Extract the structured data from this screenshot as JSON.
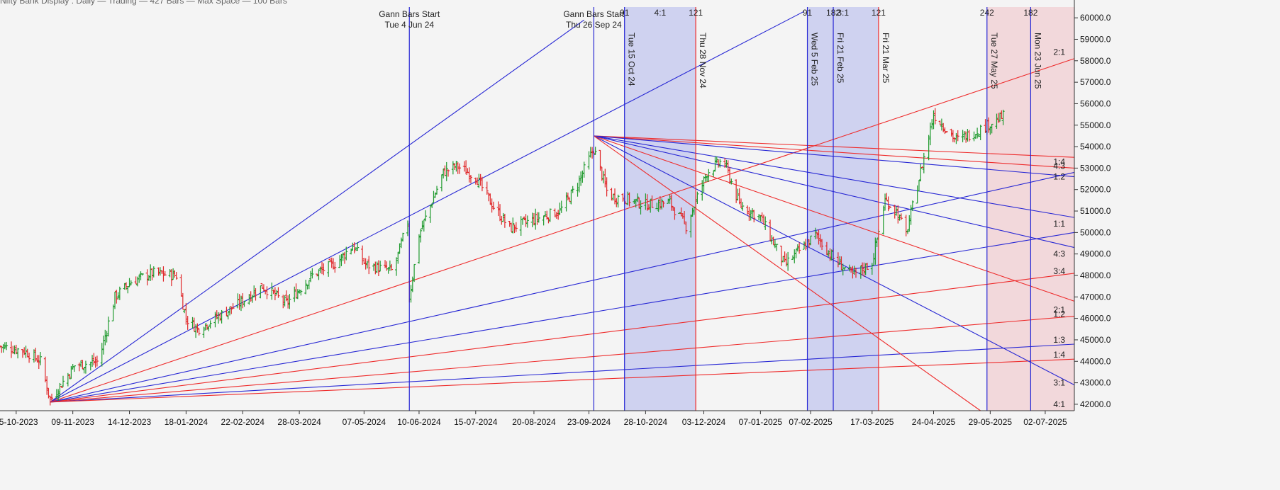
{
  "window": {
    "header_text": "Nifty Bank Display : Daily — Trading — 427 Bars — Max Space — 100 Bars"
  },
  "chart_data": {
    "type": "ohlc",
    "title": "",
    "colors": {
      "up": "#1f9a2e",
      "down": "#e0282a",
      "blue_line": "#2727d4",
      "red_line": "#ee2b2b",
      "band_blue": "#c8cbee",
      "band_red": "#f1d2d6",
      "background": "#f4f4f4"
    },
    "y_axis": {
      "position": "right",
      "min": 41700,
      "max": 60500,
      "ticks": [
        "42000.0",
        "43000.0",
        "44000.0",
        "45000.0",
        "46000.0",
        "47000.0",
        "48000.0",
        "49000.0",
        "50000.0",
        "51000.0",
        "52000.0",
        "53000.0",
        "54000.0",
        "55000.0",
        "56000.0",
        "57000.0",
        "58000.0",
        "59000.0",
        "60000.0"
      ],
      "tick_values": [
        42000,
        43000,
        44000,
        45000,
        46000,
        47000,
        48000,
        49000,
        50000,
        51000,
        52000,
        53000,
        54000,
        55000,
        56000,
        57000,
        58000,
        59000,
        60000
      ]
    },
    "x_axis": {
      "date_range": [
        "2023-09-25",
        "2025-07-20"
      ],
      "ticks": [
        {
          "label": "05-10-2023",
          "date": "2023-10-05"
        },
        {
          "label": "09-11-2023",
          "date": "2023-11-09"
        },
        {
          "label": "14-12-2023",
          "date": "2023-12-14"
        },
        {
          "label": "18-01-2024",
          "date": "2024-01-18"
        },
        {
          "label": "22-02-2024",
          "date": "2024-02-22"
        },
        {
          "label": "28-03-2024",
          "date": "2024-03-28"
        },
        {
          "label": "07-05-2024",
          "date": "2024-05-07"
        },
        {
          "label": "10-06-2024",
          "date": "2024-06-10"
        },
        {
          "label": "15-07-2024",
          "date": "2024-07-15"
        },
        {
          "label": "20-08-2024",
          "date": "2024-08-20"
        },
        {
          "label": "23-09-2024",
          "date": "2024-09-23"
        },
        {
          "label": "28-10-2024",
          "date": "2024-10-28"
        },
        {
          "label": "03-12-2024",
          "date": "2024-12-03"
        },
        {
          "label": "07-01-2025",
          "date": "2025-01-07"
        },
        {
          "label": "07-02-2025",
          "date": "2025-02-07"
        },
        {
          "label": "17-03-2025",
          "date": "2025-03-17"
        },
        {
          "label": "24-04-2025",
          "date": "2025-04-24"
        },
        {
          "label": "29-05-2025",
          "date": "2025-05-29"
        },
        {
          "label": "02-07-2025",
          "date": "2025-07-02"
        }
      ]
    },
    "price_path": [
      {
        "date": "2023-09-25",
        "close": 44700
      },
      {
        "date": "2023-10-10",
        "close": 44500
      },
      {
        "date": "2023-10-20",
        "close": 44000
      },
      {
        "date": "2023-10-26",
        "close": 42200
      },
      {
        "date": "2023-11-10",
        "close": 43800
      },
      {
        "date": "2023-11-25",
        "close": 44000
      },
      {
        "date": "2023-12-05",
        "close": 47000
      },
      {
        "date": "2023-12-15",
        "close": 47700
      },
      {
        "date": "2023-12-28",
        "close": 48100
      },
      {
        "date": "2024-01-12",
        "close": 48000
      },
      {
        "date": "2024-01-18",
        "close": 46000
      },
      {
        "date": "2024-01-25",
        "close": 45500
      },
      {
        "date": "2024-02-05",
        "close": 46000
      },
      {
        "date": "2024-02-20",
        "close": 46700
      },
      {
        "date": "2024-03-05",
        "close": 47500
      },
      {
        "date": "2024-03-20",
        "close": 46700
      },
      {
        "date": "2024-04-05",
        "close": 48000
      },
      {
        "date": "2024-04-20",
        "close": 48600
      },
      {
        "date": "2024-04-30",
        "close": 49400
      },
      {
        "date": "2024-05-08",
        "close": 48500
      },
      {
        "date": "2024-05-25",
        "close": 48200
      },
      {
        "date": "2024-06-03",
        "close": 50500
      },
      {
        "date": "2024-06-04",
        "close": 47000
      },
      {
        "date": "2024-06-10",
        "close": 49900
      },
      {
        "date": "2024-06-25",
        "close": 52800
      },
      {
        "date": "2024-07-03",
        "close": 53100
      },
      {
        "date": "2024-07-15",
        "close": 52600
      },
      {
        "date": "2024-07-25",
        "close": 51300
      },
      {
        "date": "2024-08-05",
        "close": 50200
      },
      {
        "date": "2024-08-20",
        "close": 50600
      },
      {
        "date": "2024-09-05",
        "close": 51000
      },
      {
        "date": "2024-09-15",
        "close": 52100
      },
      {
        "date": "2024-09-26",
        "close": 53900
      },
      {
        "date": "2024-10-05",
        "close": 51700
      },
      {
        "date": "2024-10-15",
        "close": 51600
      },
      {
        "date": "2024-10-28",
        "close": 51300
      },
      {
        "date": "2024-11-12",
        "close": 51400
      },
      {
        "date": "2024-11-22",
        "close": 50300
      },
      {
        "date": "2024-12-05",
        "close": 52800
      },
      {
        "date": "2024-12-15",
        "close": 53400
      },
      {
        "date": "2024-12-25",
        "close": 51300
      },
      {
        "date": "2025-01-07",
        "close": 50700
      },
      {
        "date": "2025-01-22",
        "close": 48500
      },
      {
        "date": "2025-02-02",
        "close": 49300
      },
      {
        "date": "2025-02-10",
        "close": 49900
      },
      {
        "date": "2025-02-21",
        "close": 48800
      },
      {
        "date": "2025-03-05",
        "close": 48000
      },
      {
        "date": "2025-03-17",
        "close": 48600
      },
      {
        "date": "2025-03-25",
        "close": 51500
      },
      {
        "date": "2025-04-01",
        "close": 51000
      },
      {
        "date": "2025-04-07",
        "close": 49900
      },
      {
        "date": "2025-04-15",
        "close": 52500
      },
      {
        "date": "2025-04-24",
        "close": 55500
      },
      {
        "date": "2025-05-08",
        "close": 54300
      },
      {
        "date": "2025-05-20",
        "close": 54700
      },
      {
        "date": "2025-06-06",
        "close": 55400
      }
    ],
    "vertical_markers": [
      {
        "date": "2024-06-04",
        "color": "blue",
        "label_lines": [
          "Gann Bars Start",
          "Tue 4 Jun 24"
        ]
      },
      {
        "date": "2024-09-26",
        "color": "blue",
        "label_lines": [
          "Gann Bars Start",
          "Thu 26 Sep 24"
        ]
      },
      {
        "date": "2024-10-15",
        "color": "blue",
        "date_label": "Tue 15 Oct 24",
        "top_label": "91"
      },
      {
        "date": "2024-11-28",
        "color": "red",
        "date_label": "Thu 28 Nov 24",
        "top_label": "121"
      },
      {
        "date": "2025-02-05",
        "color": "blue",
        "date_label": "Wed 5 Feb 25",
        "top_label": "91"
      },
      {
        "date": "2025-02-21",
        "color": "blue",
        "date_label": "Fri 21 Feb 25",
        "top_label": "182"
      },
      {
        "date": "2025-03-21",
        "color": "red",
        "date_label": "Fri 21 Mar 25",
        "top_label": "121"
      },
      {
        "date": "2025-05-27",
        "color": "blue",
        "date_label": "Tue 27 May 25",
        "top_label": "242"
      },
      {
        "date": "2025-06-23",
        "color": "blue",
        "date_label": "Mon 23 Jun 25",
        "top_label": "182"
      }
    ],
    "shaded_bands": [
      {
        "from": "2024-10-15",
        "to": "2024-11-28",
        "color": "blue",
        "label": "4:1"
      },
      {
        "from": "2025-02-05",
        "to": "2025-03-21",
        "color": "blue",
        "label": "3:1"
      },
      {
        "from": "2025-05-27",
        "to": "2025-07-20",
        "color": "red"
      }
    ],
    "gann_fans": [
      {
        "origin": {
          "date": "2023-10-26",
          "price": 42100
        },
        "lines": [
          {
            "to_date": "2024-09-20",
            "to_price": 59900,
            "color": "blue"
          },
          {
            "to_date": "2025-02-03",
            "to_price": 60300,
            "color": "blue"
          },
          {
            "to_date": "2025-07-20",
            "to_price": 58100,
            "color": "red"
          },
          {
            "to_date": "2025-07-20",
            "to_price": 52800,
            "color": "blue"
          },
          {
            "to_date": "2025-07-20",
            "to_price": 50000,
            "color": "blue"
          },
          {
            "to_date": "2025-07-20",
            "to_price": 48100,
            "color": "red"
          },
          {
            "to_date": "2025-07-20",
            "to_price": 46100,
            "color": "red"
          },
          {
            "to_date": "2025-07-20",
            "to_price": 44800,
            "color": "blue"
          },
          {
            "to_date": "2025-07-20",
            "to_price": 44100,
            "color": "red"
          }
        ]
      },
      {
        "origin": {
          "date": "2024-09-26",
          "price": 54500
        },
        "lines": [
          {
            "to_date": "2025-07-20",
            "to_price": 53500,
            "color": "red"
          },
          {
            "to_date": "2025-07-20",
            "to_price": 53000,
            "color": "red"
          },
          {
            "to_date": "2025-07-20",
            "to_price": 52600,
            "color": "blue"
          },
          {
            "to_date": "2025-07-20",
            "to_price": 50700,
            "color": "blue"
          },
          {
            "to_date": "2025-07-20",
            "to_price": 49300,
            "color": "blue"
          },
          {
            "to_date": "2025-07-20",
            "to_price": 46800,
            "color": "red"
          },
          {
            "to_date": "2025-07-20",
            "to_price": 42900,
            "color": "blue"
          },
          {
            "to_date": "2025-05-23",
            "to_price": 41700,
            "color": "red"
          }
        ]
      }
    ],
    "right_labels": [
      {
        "text": "2:1",
        "price": 58400
      },
      {
        "text": "1:4",
        "price": 53300
      },
      {
        "text": "4:3",
        "price": 53100
      },
      {
        "text": "1:2",
        "price": 52600
      },
      {
        "text": "1:1",
        "price": 50400
      },
      {
        "text": "4:3",
        "price": 49000
      },
      {
        "text": "3:4",
        "price": 48200
      },
      {
        "text": "2:1",
        "price": 46400
      },
      {
        "text": "1:2",
        "price": 46200
      },
      {
        "text": "1:3",
        "price": 45000
      },
      {
        "text": "1:4",
        "price": 44300
      },
      {
        "text": "3:1",
        "price": 43000
      },
      {
        "text": "4:1",
        "price": 42000
      }
    ],
    "top_extra_labels": [
      {
        "text": "4:1",
        "date": "2024-10-24"
      },
      {
        "text": "3:1",
        "date": "2025-02-14"
      }
    ]
  }
}
